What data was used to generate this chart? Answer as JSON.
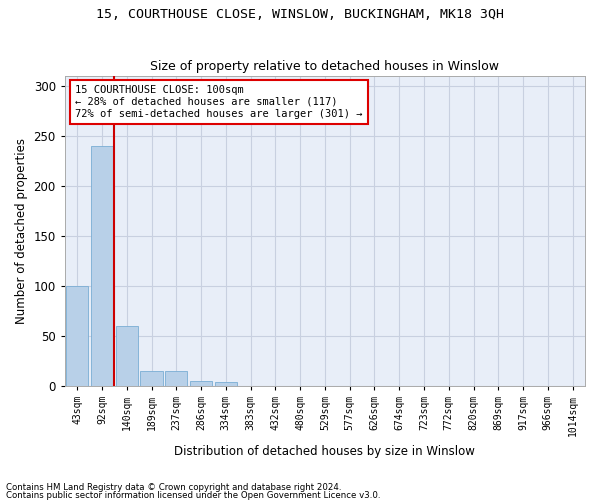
{
  "title": "15, COURTHOUSE CLOSE, WINSLOW, BUCKINGHAM, MK18 3QH",
  "subtitle": "Size of property relative to detached houses in Winslow",
  "xlabel": "Distribution of detached houses by size in Winslow",
  "ylabel": "Number of detached properties",
  "bar_color": "#b8d0e8",
  "bar_edge_color": "#7aadd4",
  "grid_color": "#c8d0e0",
  "background_color": "#e8eef8",
  "annotation_box_color": "#dd0000",
  "annotation_line_color": "#cc0000",
  "annotation_text": [
    "15 COURTHOUSE CLOSE: 100sqm",
    "← 28% of detached houses are smaller (117)",
    "72% of semi-detached houses are larger (301) →"
  ],
  "categories": [
    "43sqm",
    "92sqm",
    "140sqm",
    "189sqm",
    "237sqm",
    "286sqm",
    "334sqm",
    "383sqm",
    "432sqm",
    "480sqm",
    "529sqm",
    "577sqm",
    "626sqm",
    "674sqm",
    "723sqm",
    "772sqm",
    "820sqm",
    "869sqm",
    "917sqm",
    "966sqm",
    "1014sqm"
  ],
  "values": [
    100,
    240,
    60,
    15,
    15,
    5,
    4,
    0,
    0,
    0,
    0,
    0,
    0,
    0,
    0,
    0,
    0,
    0,
    0,
    0,
    0
  ],
  "ylim": [
    0,
    310
  ],
  "yticks": [
    0,
    50,
    100,
    150,
    200,
    250,
    300
  ],
  "vline_x": 1.5,
  "footnote1": "Contains HM Land Registry data © Crown copyright and database right 2024.",
  "footnote2": "Contains public sector information licensed under the Open Government Licence v3.0."
}
